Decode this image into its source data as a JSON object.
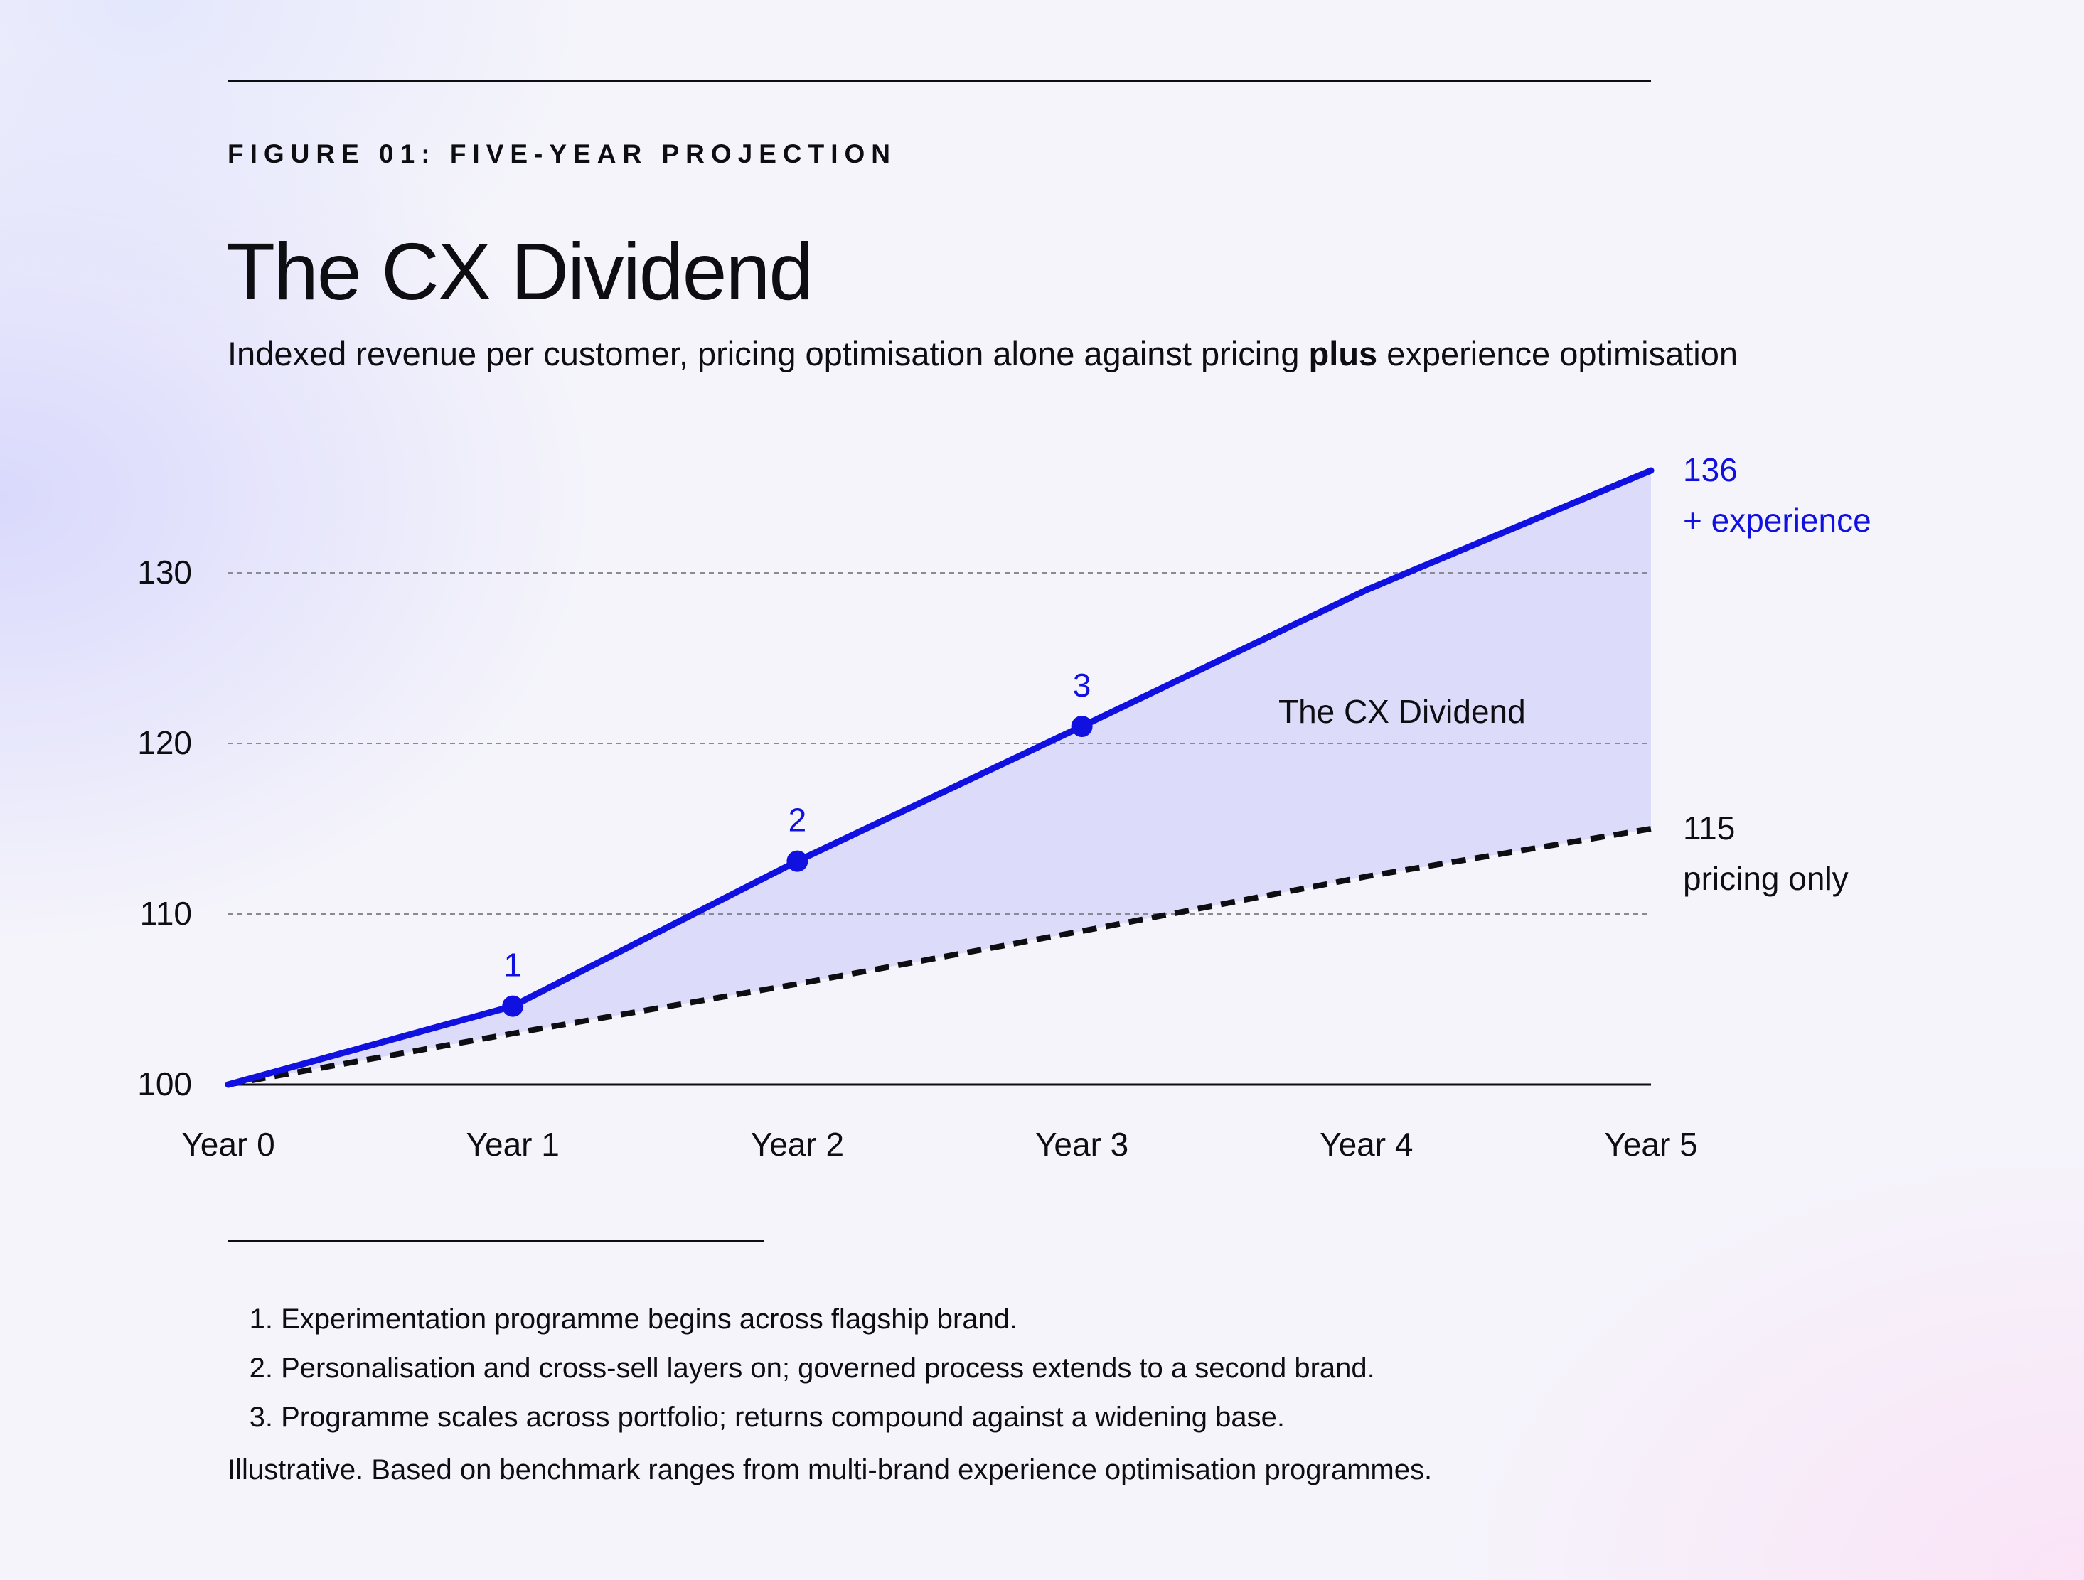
{
  "header": {
    "eyebrow": "FIGURE 01: FIVE-YEAR PROJECTION",
    "title": "The CX Dividend",
    "subtitle_before": "Indexed revenue per customer, pricing optimisation alone against pricing ",
    "subtitle_bold": "plus",
    "subtitle_after": " experience optimisation"
  },
  "chart_data": {
    "type": "line",
    "categories": [
      "Year 0",
      "Year 1",
      "Year 2",
      "Year 3",
      "Year 4",
      "Year 5"
    ],
    "ylim": [
      100,
      136
    ],
    "yticks": [
      "100",
      "110",
      "120",
      "130"
    ],
    "grid": true,
    "series": [
      {
        "name": "+ experience",
        "values": [
          100,
          104.6,
          113.1,
          121,
          129,
          136
        ],
        "end_label": "136",
        "color": "#1010e0",
        "style": "solid",
        "markers": [
          {
            "index": 1,
            "label": "1"
          },
          {
            "index": 2,
            "label": "2"
          },
          {
            "index": 3,
            "label": "3"
          }
        ]
      },
      {
        "name": "pricing only",
        "values": [
          100,
          103,
          105.9,
          109,
          112.2,
          115
        ],
        "end_label": "115",
        "color": "#0d0d12",
        "style": "dashed"
      }
    ],
    "area_fill": "#dcdcfa",
    "annotations": [
      {
        "text": "The CX Dividend"
      }
    ]
  },
  "notes": [
    {
      "num": "1.",
      "text": "Experimentation programme begins across flagship brand."
    },
    {
      "num": "2.",
      "text": "Personalisation and cross-sell layers on; governed process extends to a second brand."
    },
    {
      "num": "3.",
      "text": "Programme scales across portfolio; returns compound against a widening base."
    }
  ],
  "source": "Illustrative. Based on benchmark ranges from multi-brand experience optimisation programmes."
}
